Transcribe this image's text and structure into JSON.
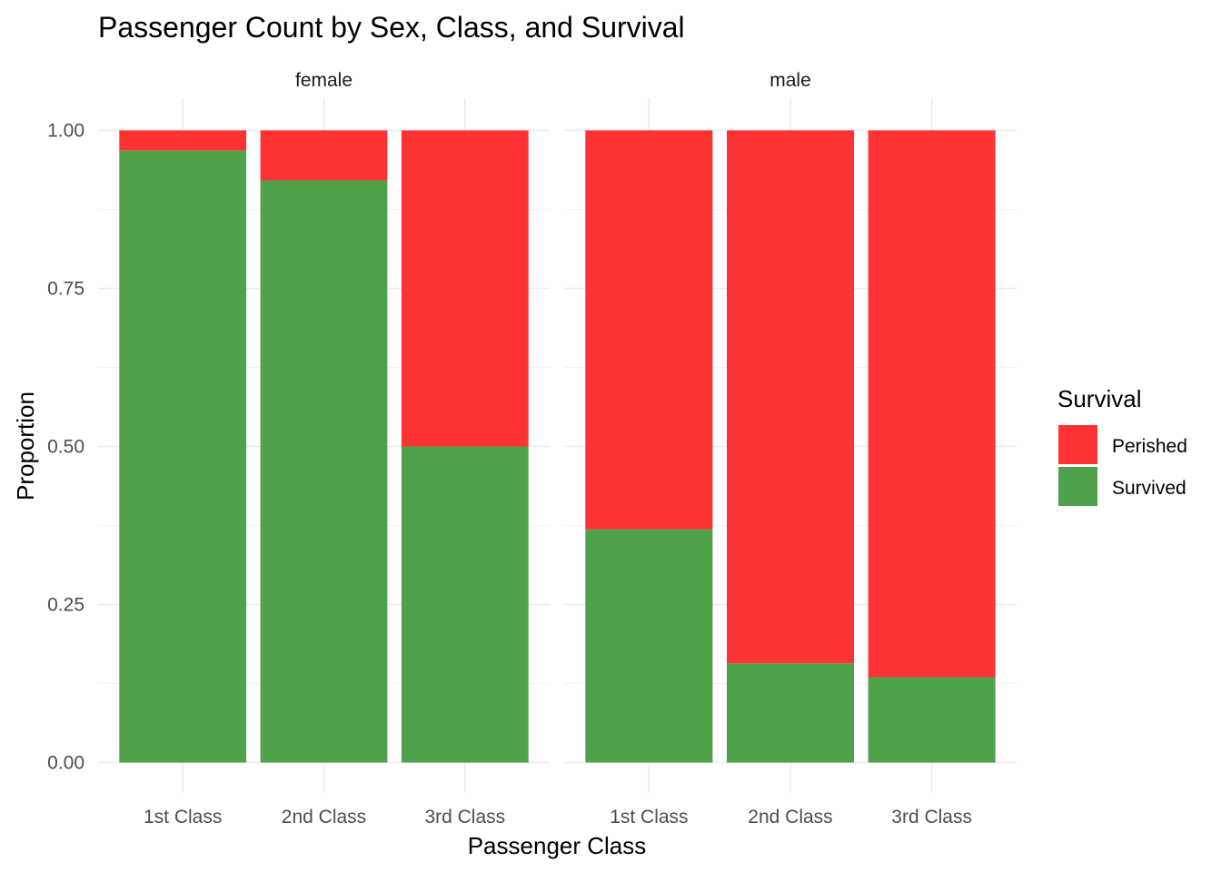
{
  "chart_data": {
    "type": "bar",
    "stacked": true,
    "title": "Passenger Count by Sex, Class, and Survival",
    "xlabel": "Passenger Class",
    "ylabel": "Proportion",
    "ylim": [
      0,
      1
    ],
    "yticks": [
      "0.00",
      "0.25",
      "0.50",
      "0.75",
      "1.00"
    ],
    "grid": true,
    "categories": [
      "1st Class",
      "2nd Class",
      "3rd Class"
    ],
    "facets": [
      {
        "name": "female",
        "series": [
          {
            "name": "Perished",
            "values": [
              0.032,
              0.079,
              0.5
            ]
          },
          {
            "name": "Survived",
            "values": [
              0.968,
              0.921,
              0.5
            ]
          }
        ]
      },
      {
        "name": "male",
        "series": [
          {
            "name": "Perished",
            "values": [
              0.631,
              0.843,
              0.865
            ]
          },
          {
            "name": "Survived",
            "values": [
              0.369,
              0.157,
              0.135
            ]
          }
        ]
      }
    ],
    "legend": {
      "title": "Survival",
      "position": "right",
      "items": [
        {
          "name": "Perished",
          "color": "#ff3333"
        },
        {
          "name": "Survived",
          "color": "#4ea24c"
        }
      ]
    },
    "colors": {
      "Perished": "#ff3333",
      "Survived": "#4ea24c"
    }
  }
}
